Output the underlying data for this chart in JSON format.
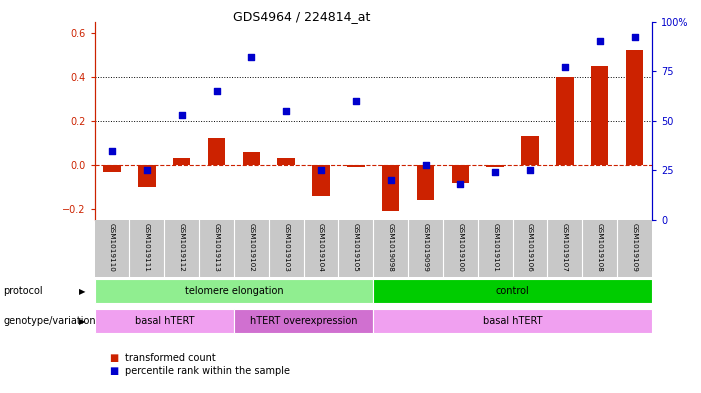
{
  "title": "GDS4964 / 224814_at",
  "samples": [
    "GSM1019110",
    "GSM1019111",
    "GSM1019112",
    "GSM1019113",
    "GSM1019102",
    "GSM1019103",
    "GSM1019104",
    "GSM1019105",
    "GSM1019098",
    "GSM1019099",
    "GSM1019100",
    "GSM1019101",
    "GSM1019106",
    "GSM1019107",
    "GSM1019108",
    "GSM1019109"
  ],
  "transformed_count": [
    -0.03,
    -0.1,
    0.03,
    0.12,
    0.06,
    0.03,
    -0.14,
    -0.01,
    -0.21,
    -0.16,
    -0.08,
    -0.01,
    0.13,
    0.4,
    0.45,
    0.52
  ],
  "percentile_rank": [
    35,
    25,
    53,
    65,
    82,
    55,
    25,
    60,
    20,
    28,
    18,
    24,
    25,
    77,
    90,
    92
  ],
  "protocol_groups": [
    {
      "label": "telomere elongation",
      "start": 0,
      "end": 8,
      "color": "#90ee90"
    },
    {
      "label": "control",
      "start": 8,
      "end": 16,
      "color": "#00cc00"
    }
  ],
  "genotype_groups": [
    {
      "label": "basal hTERT",
      "start": 0,
      "end": 4,
      "color": "#f0a0f0"
    },
    {
      "label": "hTERT overexpression",
      "start": 4,
      "end": 8,
      "color": "#d070d0"
    },
    {
      "label": "basal hTERT",
      "start": 8,
      "end": 16,
      "color": "#f0a0f0"
    }
  ],
  "ylim_left": [
    -0.25,
    0.65
  ],
  "ylim_right": [
    0,
    100
  ],
  "bar_color": "#cc2200",
  "dot_color": "#0000cc",
  "hline_color": "#cc2200",
  "dotted_line_color": "#000000",
  "bg_color": "#ffffff",
  "plot_bg": "#ffffff",
  "axis_left_color": "#cc2200",
  "axis_right_color": "#0000cc",
  "sample_bg": "#c8c8c8"
}
